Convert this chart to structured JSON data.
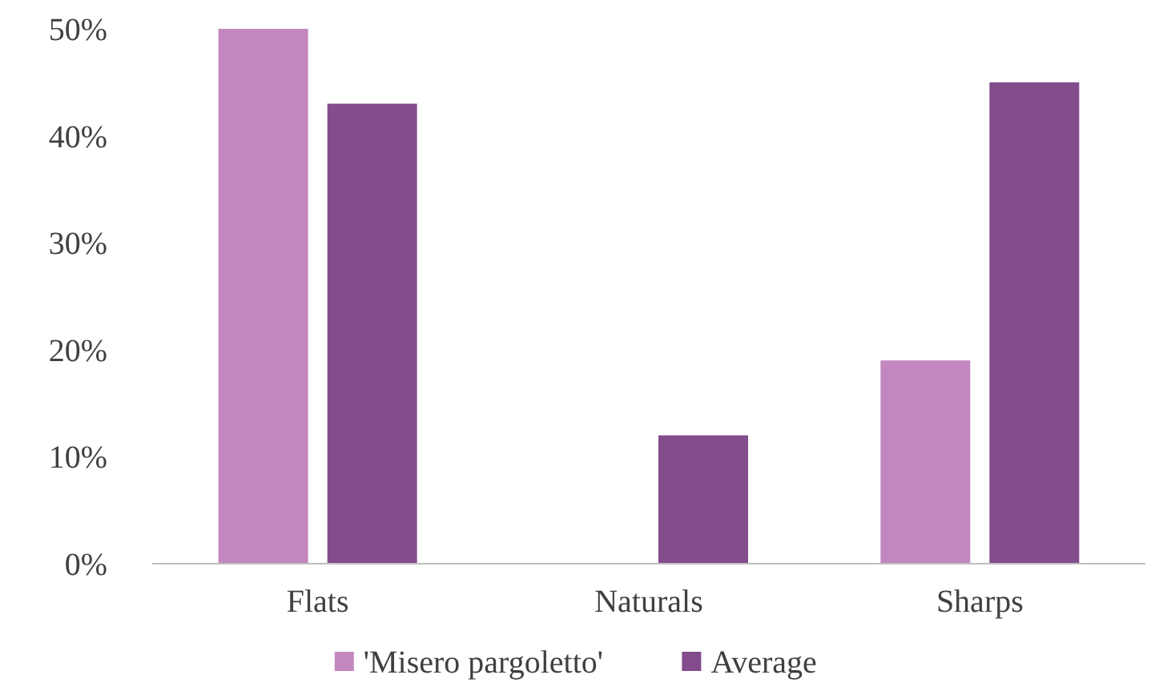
{
  "chart_data": {
    "type": "bar",
    "categories": [
      "Flats",
      "Naturals",
      "Sharps"
    ],
    "series": [
      {
        "name": "'Misero pargoletto'",
        "color": "#c387bf",
        "values": [
          50,
          0,
          19
        ]
      },
      {
        "name": "Average",
        "color": "#834c8c",
        "values": [
          43,
          12,
          45
        ]
      }
    ],
    "ylim": [
      0,
      50
    ],
    "yticks": [
      {
        "value": 0,
        "label": "0%"
      },
      {
        "value": 10,
        "label": "10%"
      },
      {
        "value": 20,
        "label": "20%"
      },
      {
        "value": 30,
        "label": "30%"
      },
      {
        "value": 40,
        "label": "40%"
      },
      {
        "value": 50,
        "label": "50%"
      }
    ],
    "grid": false,
    "legend": "bottom"
  }
}
